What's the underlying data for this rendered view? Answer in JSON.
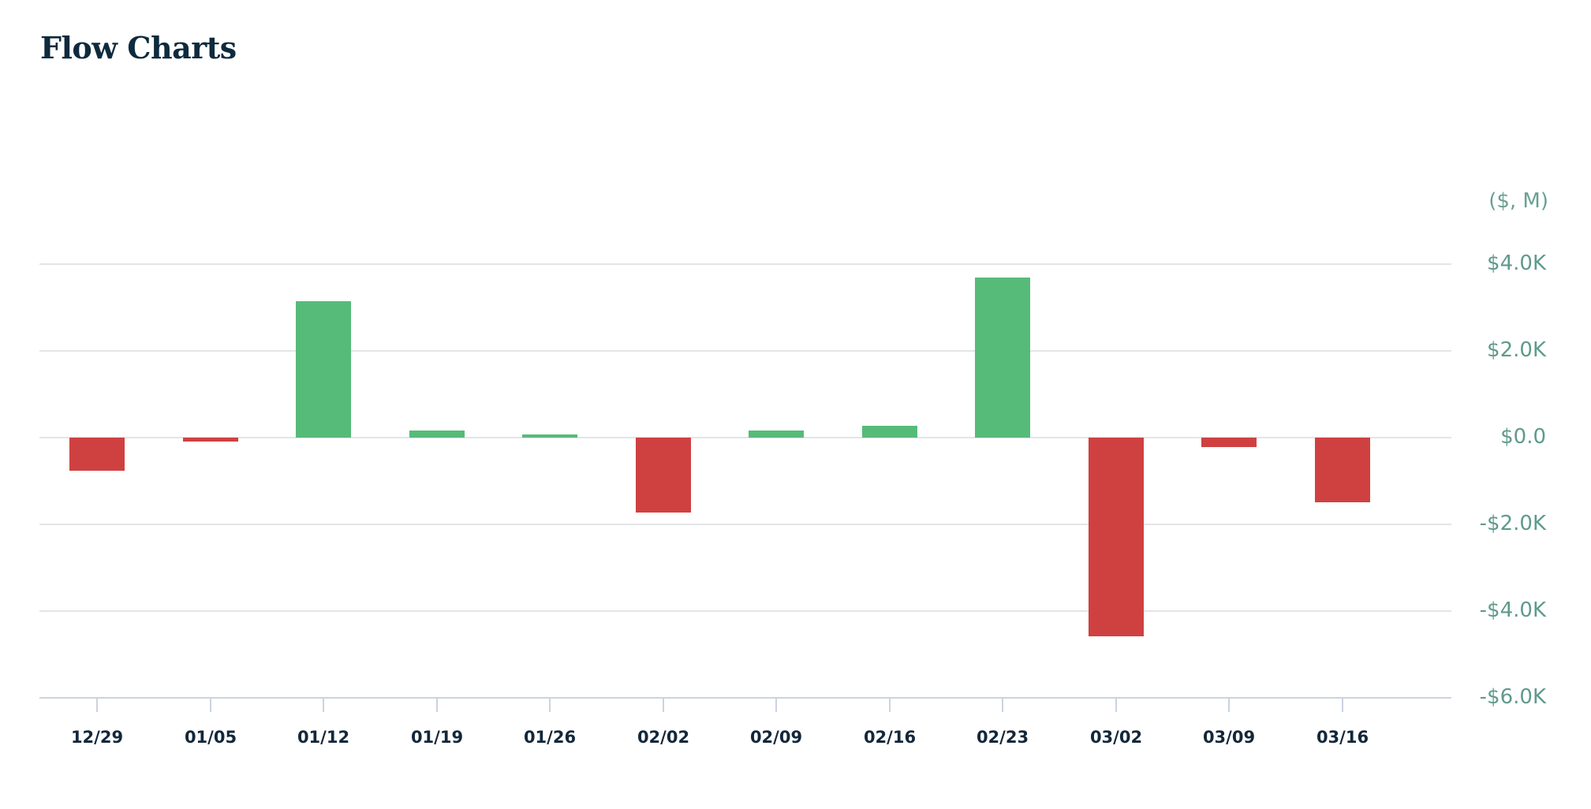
{
  "header": {
    "title": "Flow Charts"
  },
  "colors": {
    "positive": "#56bb79",
    "negative": "#cf4141",
    "axis_label": "#5f9a8c",
    "x_label": "#13273a",
    "grid": "#e3e5e8",
    "axis": "#cbd3e0",
    "title": "#0e2a3d"
  },
  "chart_data": {
    "type": "bar",
    "title": "Flow Charts",
    "xlabel": "",
    "ylabel": "($, M)",
    "unit_label": "($, M)",
    "categories": [
      "12/29",
      "01/05",
      "01/12",
      "01/19",
      "01/26",
      "02/02",
      "02/09",
      "02/16",
      "02/23",
      "03/02",
      "03/09",
      "03/16"
    ],
    "values": [
      -0.76,
      -0.09,
      3.15,
      0.16,
      0.07,
      -1.72,
      0.16,
      0.27,
      3.69,
      -4.58,
      -0.22,
      -1.49
    ],
    "value_units": "thousands of $M",
    "ylim": [
      -6.0,
      4.0
    ],
    "yticks": [
      4.0,
      2.0,
      0.0,
      -2.0,
      -4.0,
      -6.0
    ],
    "ytick_labels": [
      "$4.0K",
      "$2.0K",
      "$0.0",
      "-$2.0K",
      "-$4.0K",
      "-$6.0K"
    ],
    "y_axis_position": "right",
    "grid": true,
    "legend": null,
    "color_rule": "green if positive, red if negative"
  }
}
